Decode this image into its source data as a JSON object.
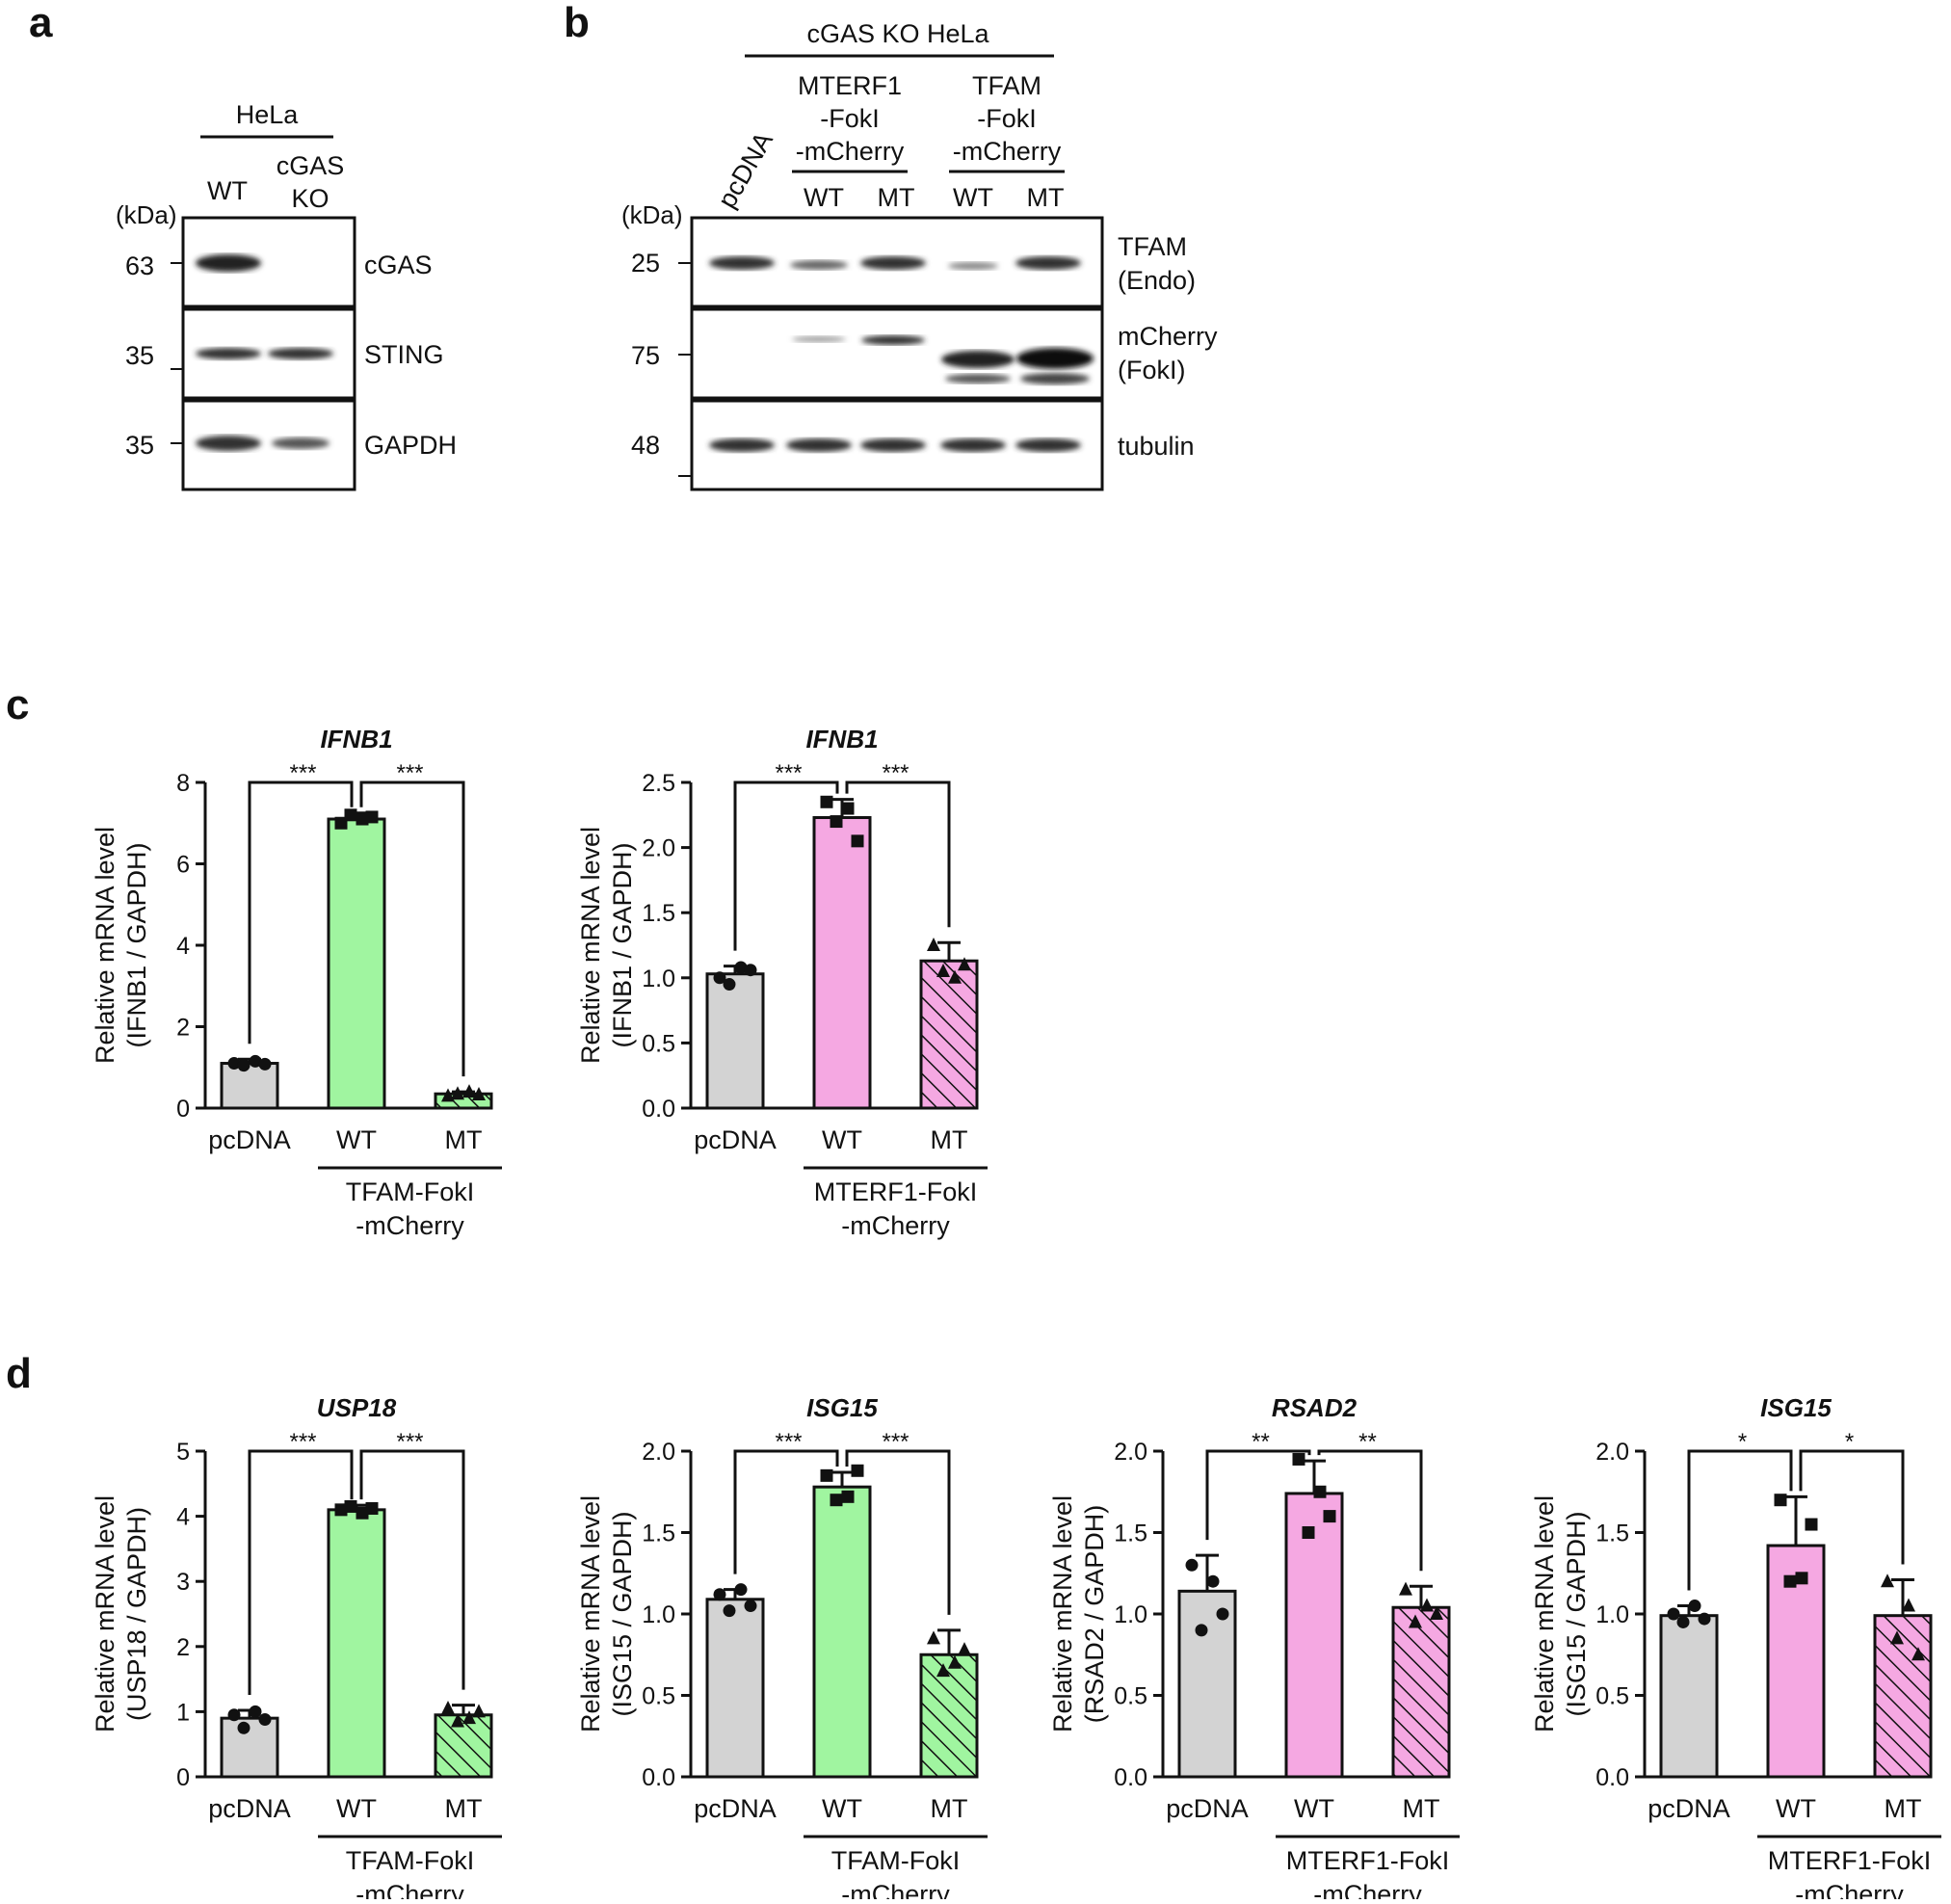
{
  "panels": {
    "a": "a",
    "b": "b",
    "c": "c",
    "d": "d"
  },
  "blot_a": {
    "group": "HeLa",
    "lanes": [
      "WT",
      "cGAS",
      "KO"
    ],
    "kda": "(kDa)",
    "markers": [
      "63",
      "35",
      "35"
    ],
    "proteins": [
      "cGAS",
      "STING",
      "GAPDH"
    ]
  },
  "blot_b": {
    "group": "cGAS KO HeLa",
    "lane1": "pcDNA",
    "construct1": [
      "MTERF1",
      "-FokI",
      "-mCherry"
    ],
    "construct2": [
      "TFAM",
      "-FokI",
      "-mCherry"
    ],
    "lanes": [
      "WT",
      "MT",
      "WT",
      "MT"
    ],
    "kda": "(kDa)",
    "markers": [
      "25",
      "75",
      "48"
    ],
    "proteins": [
      [
        "TFAM",
        "(Endo)"
      ],
      [
        "mCherry",
        "(FokI)"
      ],
      [
        "tubulin"
      ]
    ]
  },
  "colors": {
    "grey": "#d3d3d3",
    "green": "#a0f5a0",
    "pink": "#f5a8e2",
    "hatch": "#111111"
  },
  "chart_data": [
    {
      "id": "c1",
      "type": "bar",
      "title": "IFNB1",
      "ylabel": [
        "Relative mRNA level",
        "(IFNB1 / GAPDH)"
      ],
      "ylim": [
        0,
        8
      ],
      "yticks": [
        "0",
        "2",
        "4",
        "6",
        "8"
      ],
      "categories": [
        "pcDNA",
        "WT",
        "MT"
      ],
      "values": [
        1.1,
        7.1,
        0.35
      ],
      "err": [
        0.1,
        0.15,
        0.05
      ],
      "points": [
        [
          1.1,
          1.05,
          1.15,
          1.08
        ],
        [
          7.0,
          7.2,
          7.1,
          7.15
        ],
        [
          0.3,
          0.35,
          0.4,
          0.33
        ]
      ],
      "markers": [
        "circle",
        "square",
        "triangle"
      ],
      "fills": [
        "grey",
        "green",
        "green-hatch"
      ],
      "group": [
        "TFAM-FokI",
        "-mCherry"
      ],
      "sig": [
        "***",
        "***"
      ]
    },
    {
      "id": "c2",
      "type": "bar",
      "title": "IFNB1",
      "ylabel": [
        "Relative mRNA level",
        "(IFNB1 / GAPDH)"
      ],
      "ylim": [
        0,
        2.5
      ],
      "yticks": [
        "0.0",
        "0.5",
        "1.0",
        "1.5",
        "2.0",
        "2.5"
      ],
      "categories": [
        "pcDNA",
        "WT",
        "MT"
      ],
      "values": [
        1.03,
        2.23,
        1.13
      ],
      "err": [
        0.06,
        0.14,
        0.14
      ],
      "points": [
        [
          1.0,
          0.95,
          1.08,
          1.06
        ],
        [
          2.35,
          2.2,
          2.3,
          2.05
        ],
        [
          1.25,
          1.05,
          1.0,
          1.1
        ]
      ],
      "markers": [
        "circle",
        "square",
        "triangle"
      ],
      "fills": [
        "grey",
        "pink",
        "pink-hatch"
      ],
      "group": [
        "MTERF1-FokI",
        "-mCherry"
      ],
      "sig": [
        "***",
        "***"
      ]
    },
    {
      "id": "d1",
      "type": "bar",
      "title": "USP18",
      "ylabel": [
        "Relative mRNA level",
        "(USP18 / GAPDH)"
      ],
      "ylim": [
        0,
        5
      ],
      "yticks": [
        "0",
        "1",
        "2",
        "3",
        "4",
        "5"
      ],
      "categories": [
        "pcDNA",
        "WT",
        "MT"
      ],
      "values": [
        0.9,
        4.1,
        0.95
      ],
      "err": [
        0.12,
        0.07,
        0.15
      ],
      "points": [
        [
          0.95,
          0.75,
          1.0,
          0.88
        ],
        [
          4.1,
          4.15,
          4.05,
          4.12
        ],
        [
          1.05,
          0.85,
          0.9,
          1.0
        ]
      ],
      "markers": [
        "circle",
        "square",
        "triangle"
      ],
      "fills": [
        "grey",
        "green",
        "green-hatch"
      ],
      "group": [
        "TFAM-FokI",
        "-mCherry"
      ],
      "sig": [
        "***",
        "***"
      ]
    },
    {
      "id": "d2",
      "type": "bar",
      "title": "ISG15",
      "ylabel": [
        "Relative mRNA level",
        "(ISG15 / GAPDH)"
      ],
      "ylim": [
        0,
        2.0
      ],
      "yticks": [
        "0.0",
        "0.5",
        "1.0",
        "1.5",
        "2.0"
      ],
      "categories": [
        "pcDNA",
        "WT",
        "MT"
      ],
      "values": [
        1.09,
        1.78,
        0.75
      ],
      "err": [
        0.06,
        0.09,
        0.15
      ],
      "points": [
        [
          1.12,
          1.02,
          1.15,
          1.05
        ],
        [
          1.85,
          1.7,
          1.72,
          1.88
        ],
        [
          0.85,
          0.65,
          0.7,
          0.78
        ]
      ],
      "markers": [
        "circle",
        "square",
        "triangle"
      ],
      "fills": [
        "grey",
        "green",
        "green-hatch"
      ],
      "group": [
        "TFAM-FokI",
        "-mCherry"
      ],
      "sig": [
        "***",
        "***"
      ]
    },
    {
      "id": "d3",
      "type": "bar",
      "title": "RSAD2",
      "ylabel": [
        "Relative mRNA level",
        "(RSAD2 / GAPDH)"
      ],
      "ylim": [
        0,
        2.0
      ],
      "yticks": [
        "0.0",
        "0.5",
        "1.0",
        "1.5",
        "2.0"
      ],
      "categories": [
        "pcDNA",
        "WT",
        "MT"
      ],
      "values": [
        1.14,
        1.74,
        1.04
      ],
      "err": [
        0.22,
        0.2,
        0.13
      ],
      "points": [
        [
          1.3,
          0.9,
          1.2,
          1.0
        ],
        [
          1.95,
          1.5,
          1.75,
          1.6
        ],
        [
          1.15,
          0.95,
          1.05,
          1.0
        ]
      ],
      "markers": [
        "circle",
        "square",
        "triangle"
      ],
      "fills": [
        "grey",
        "pink",
        "pink-hatch"
      ],
      "group": [
        "MTERF1-FokI",
        "-mCherry"
      ],
      "sig": [
        "**",
        "**"
      ]
    },
    {
      "id": "d4",
      "type": "bar",
      "title": "ISG15",
      "ylabel": [
        "Relative mRNA level",
        "(ISG15 / GAPDH)"
      ],
      "ylim": [
        0,
        2.0
      ],
      "yticks": [
        "0.0",
        "0.5",
        "1.0",
        "1.5",
        "2.0"
      ],
      "categories": [
        "pcDNA",
        "WT",
        "MT"
      ],
      "values": [
        0.99,
        1.42,
        0.99
      ],
      "err": [
        0.06,
        0.3,
        0.22
      ],
      "points": [
        [
          1.0,
          0.95,
          1.05,
          0.97
        ],
        [
          1.7,
          1.2,
          1.22,
          1.55
        ],
        [
          1.2,
          0.85,
          1.05,
          0.75
        ]
      ],
      "markers": [
        "circle",
        "square",
        "triangle"
      ],
      "fills": [
        "grey",
        "pink",
        "pink-hatch"
      ],
      "group": [
        "MTERF1-FokI",
        "-mCherry"
      ],
      "sig": [
        "*",
        "*"
      ]
    }
  ]
}
